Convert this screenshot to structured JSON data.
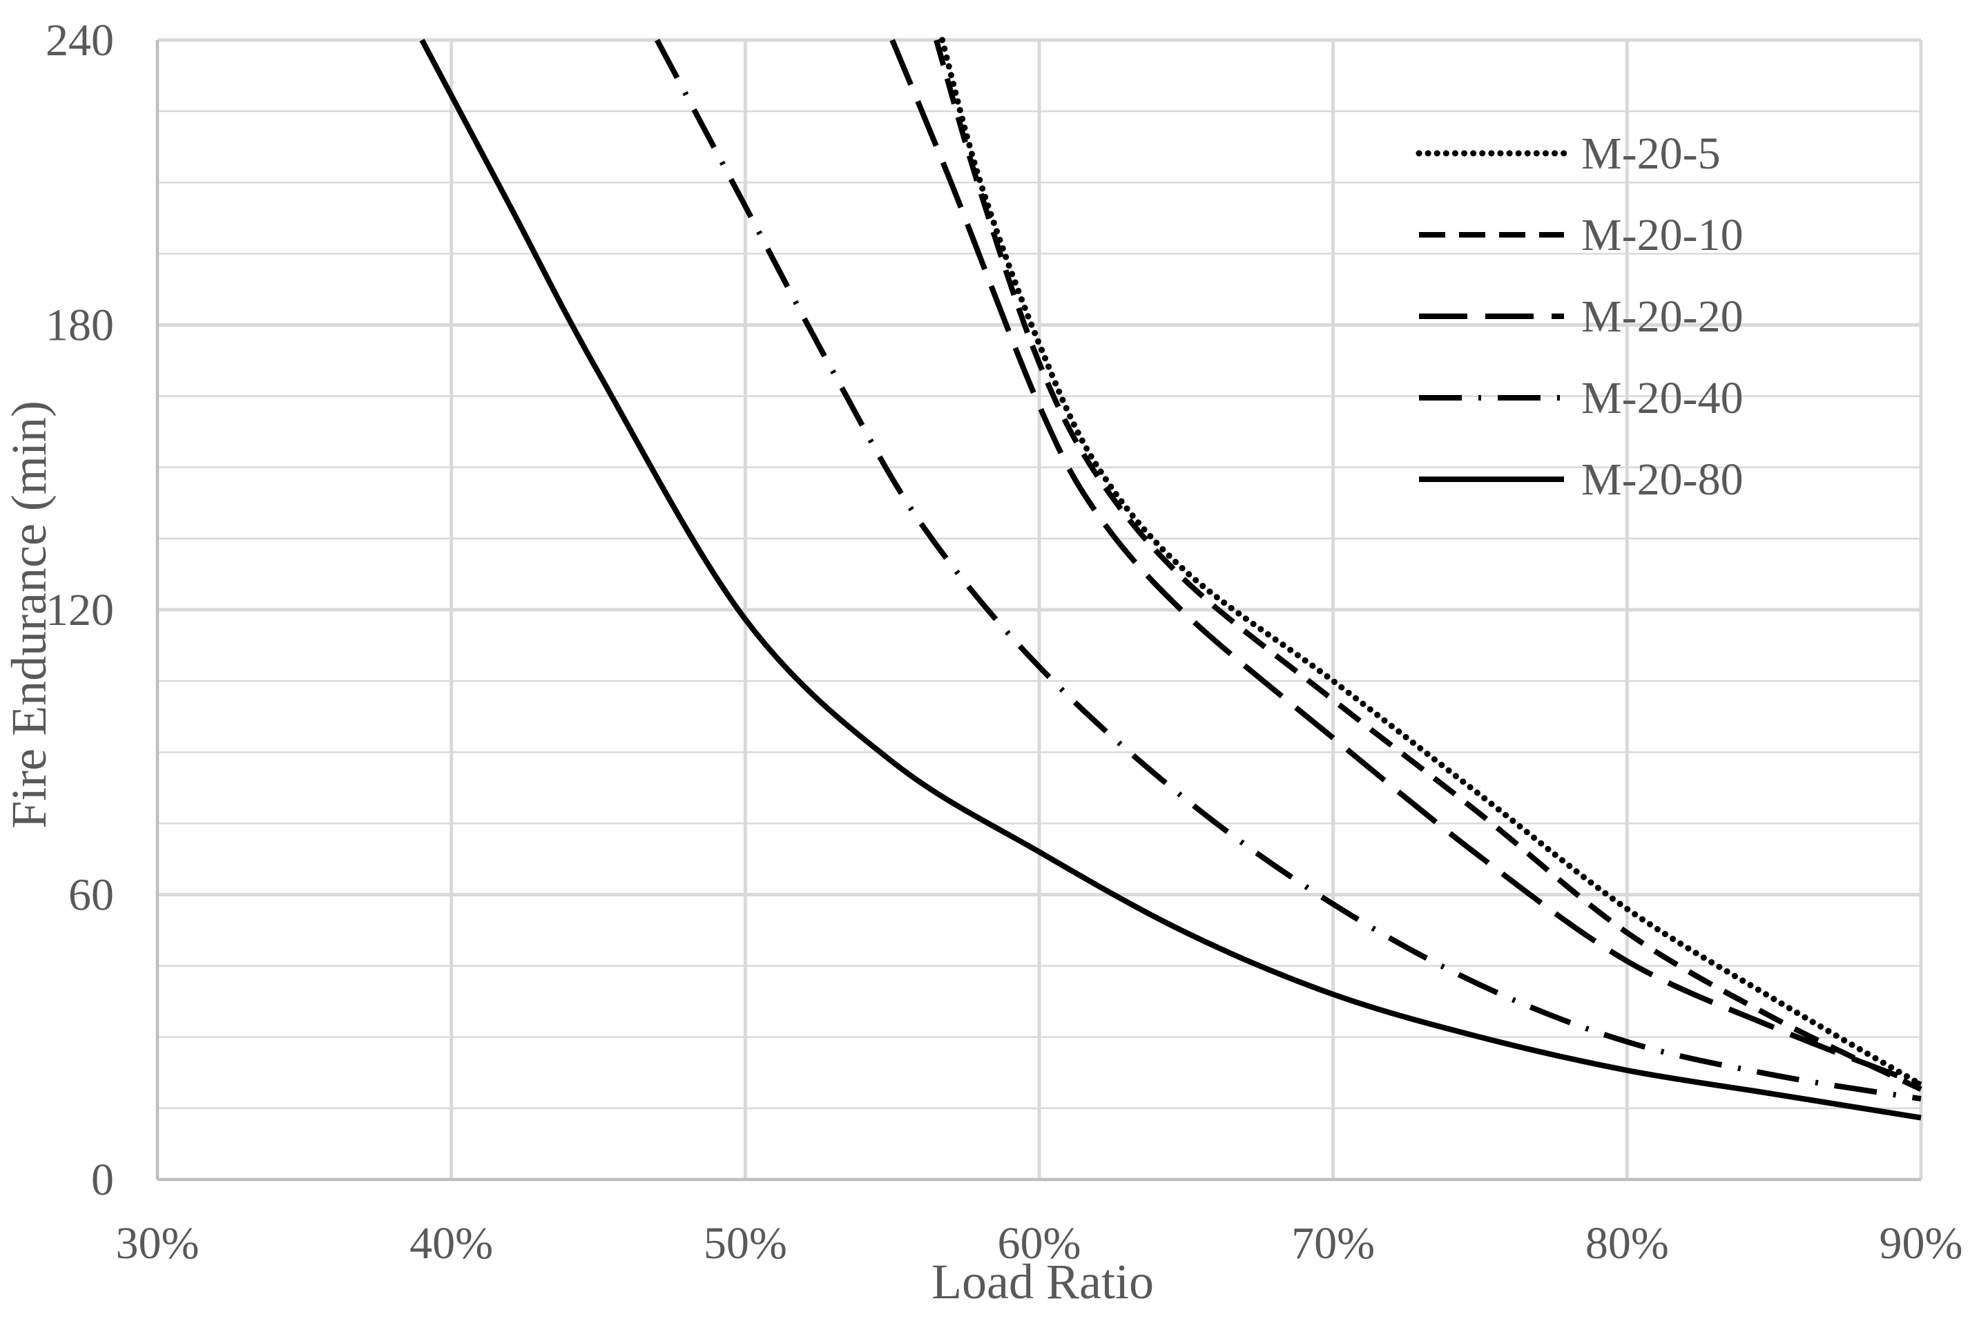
{
  "chart_data": {
    "type": "line",
    "xlabel": "Load Ratio",
    "ylabel": "Fire Endurance (min)",
    "xlim": [
      0.3,
      0.9
    ],
    "ylim": [
      0,
      240
    ],
    "x_ticks": [
      "30%",
      "40%",
      "50%",
      "60%",
      "70%",
      "80%",
      "90%"
    ],
    "y_ticks": [
      "0",
      "60",
      "120",
      "180",
      "240"
    ],
    "grid": true,
    "legend_position": "top-right",
    "line_color": "#000000",
    "grid_color": "#d9d9d9",
    "series": [
      {
        "name": "M-20-5",
        "dash": "dotted",
        "points": [
          [
            0.567,
            240
          ],
          [
            0.58,
            210
          ],
          [
            0.6,
            176
          ],
          [
            0.62,
            150
          ],
          [
            0.65,
            128
          ],
          [
            0.7,
            105
          ],
          [
            0.75,
            81
          ],
          [
            0.8,
            57
          ],
          [
            0.85,
            38
          ],
          [
            0.9,
            20
          ]
        ]
      },
      {
        "name": "M-20-10",
        "dash": "dashed",
        "points": [
          [
            0.565,
            240
          ],
          [
            0.58,
            208
          ],
          [
            0.6,
            172
          ],
          [
            0.62,
            148
          ],
          [
            0.65,
            126
          ],
          [
            0.7,
            101
          ],
          [
            0.75,
            77
          ],
          [
            0.8,
            52
          ],
          [
            0.85,
            34
          ],
          [
            0.9,
            19
          ]
        ]
      },
      {
        "name": "M-20-20",
        "dash": "long-dashed",
        "points": [
          [
            0.55,
            240
          ],
          [
            0.57,
            210
          ],
          [
            0.6,
            163
          ],
          [
            0.62,
            140
          ],
          [
            0.65,
            119
          ],
          [
            0.7,
            93
          ],
          [
            0.75,
            68
          ],
          [
            0.8,
            46
          ],
          [
            0.85,
            32
          ],
          [
            0.9,
            20
          ]
        ]
      },
      {
        "name": "M-20-40",
        "dash": "dash-dot",
        "points": [
          [
            0.47,
            240
          ],
          [
            0.5,
            205
          ],
          [
            0.53,
            170
          ],
          [
            0.56,
            138
          ],
          [
            0.6,
            108
          ],
          [
            0.65,
            80
          ],
          [
            0.7,
            58
          ],
          [
            0.75,
            41
          ],
          [
            0.8,
            29
          ],
          [
            0.85,
            22
          ],
          [
            0.9,
            17
          ]
        ]
      },
      {
        "name": "M-20-80",
        "dash": "solid",
        "points": [
          [
            0.39,
            240
          ],
          [
            0.42,
            205
          ],
          [
            0.45,
            170
          ],
          [
            0.5,
            118
          ],
          [
            0.55,
            88
          ],
          [
            0.6,
            69
          ],
          [
            0.65,
            52
          ],
          [
            0.7,
            39
          ],
          [
            0.75,
            30
          ],
          [
            0.8,
            23
          ],
          [
            0.85,
            18
          ],
          [
            0.9,
            13
          ]
        ]
      }
    ]
  }
}
